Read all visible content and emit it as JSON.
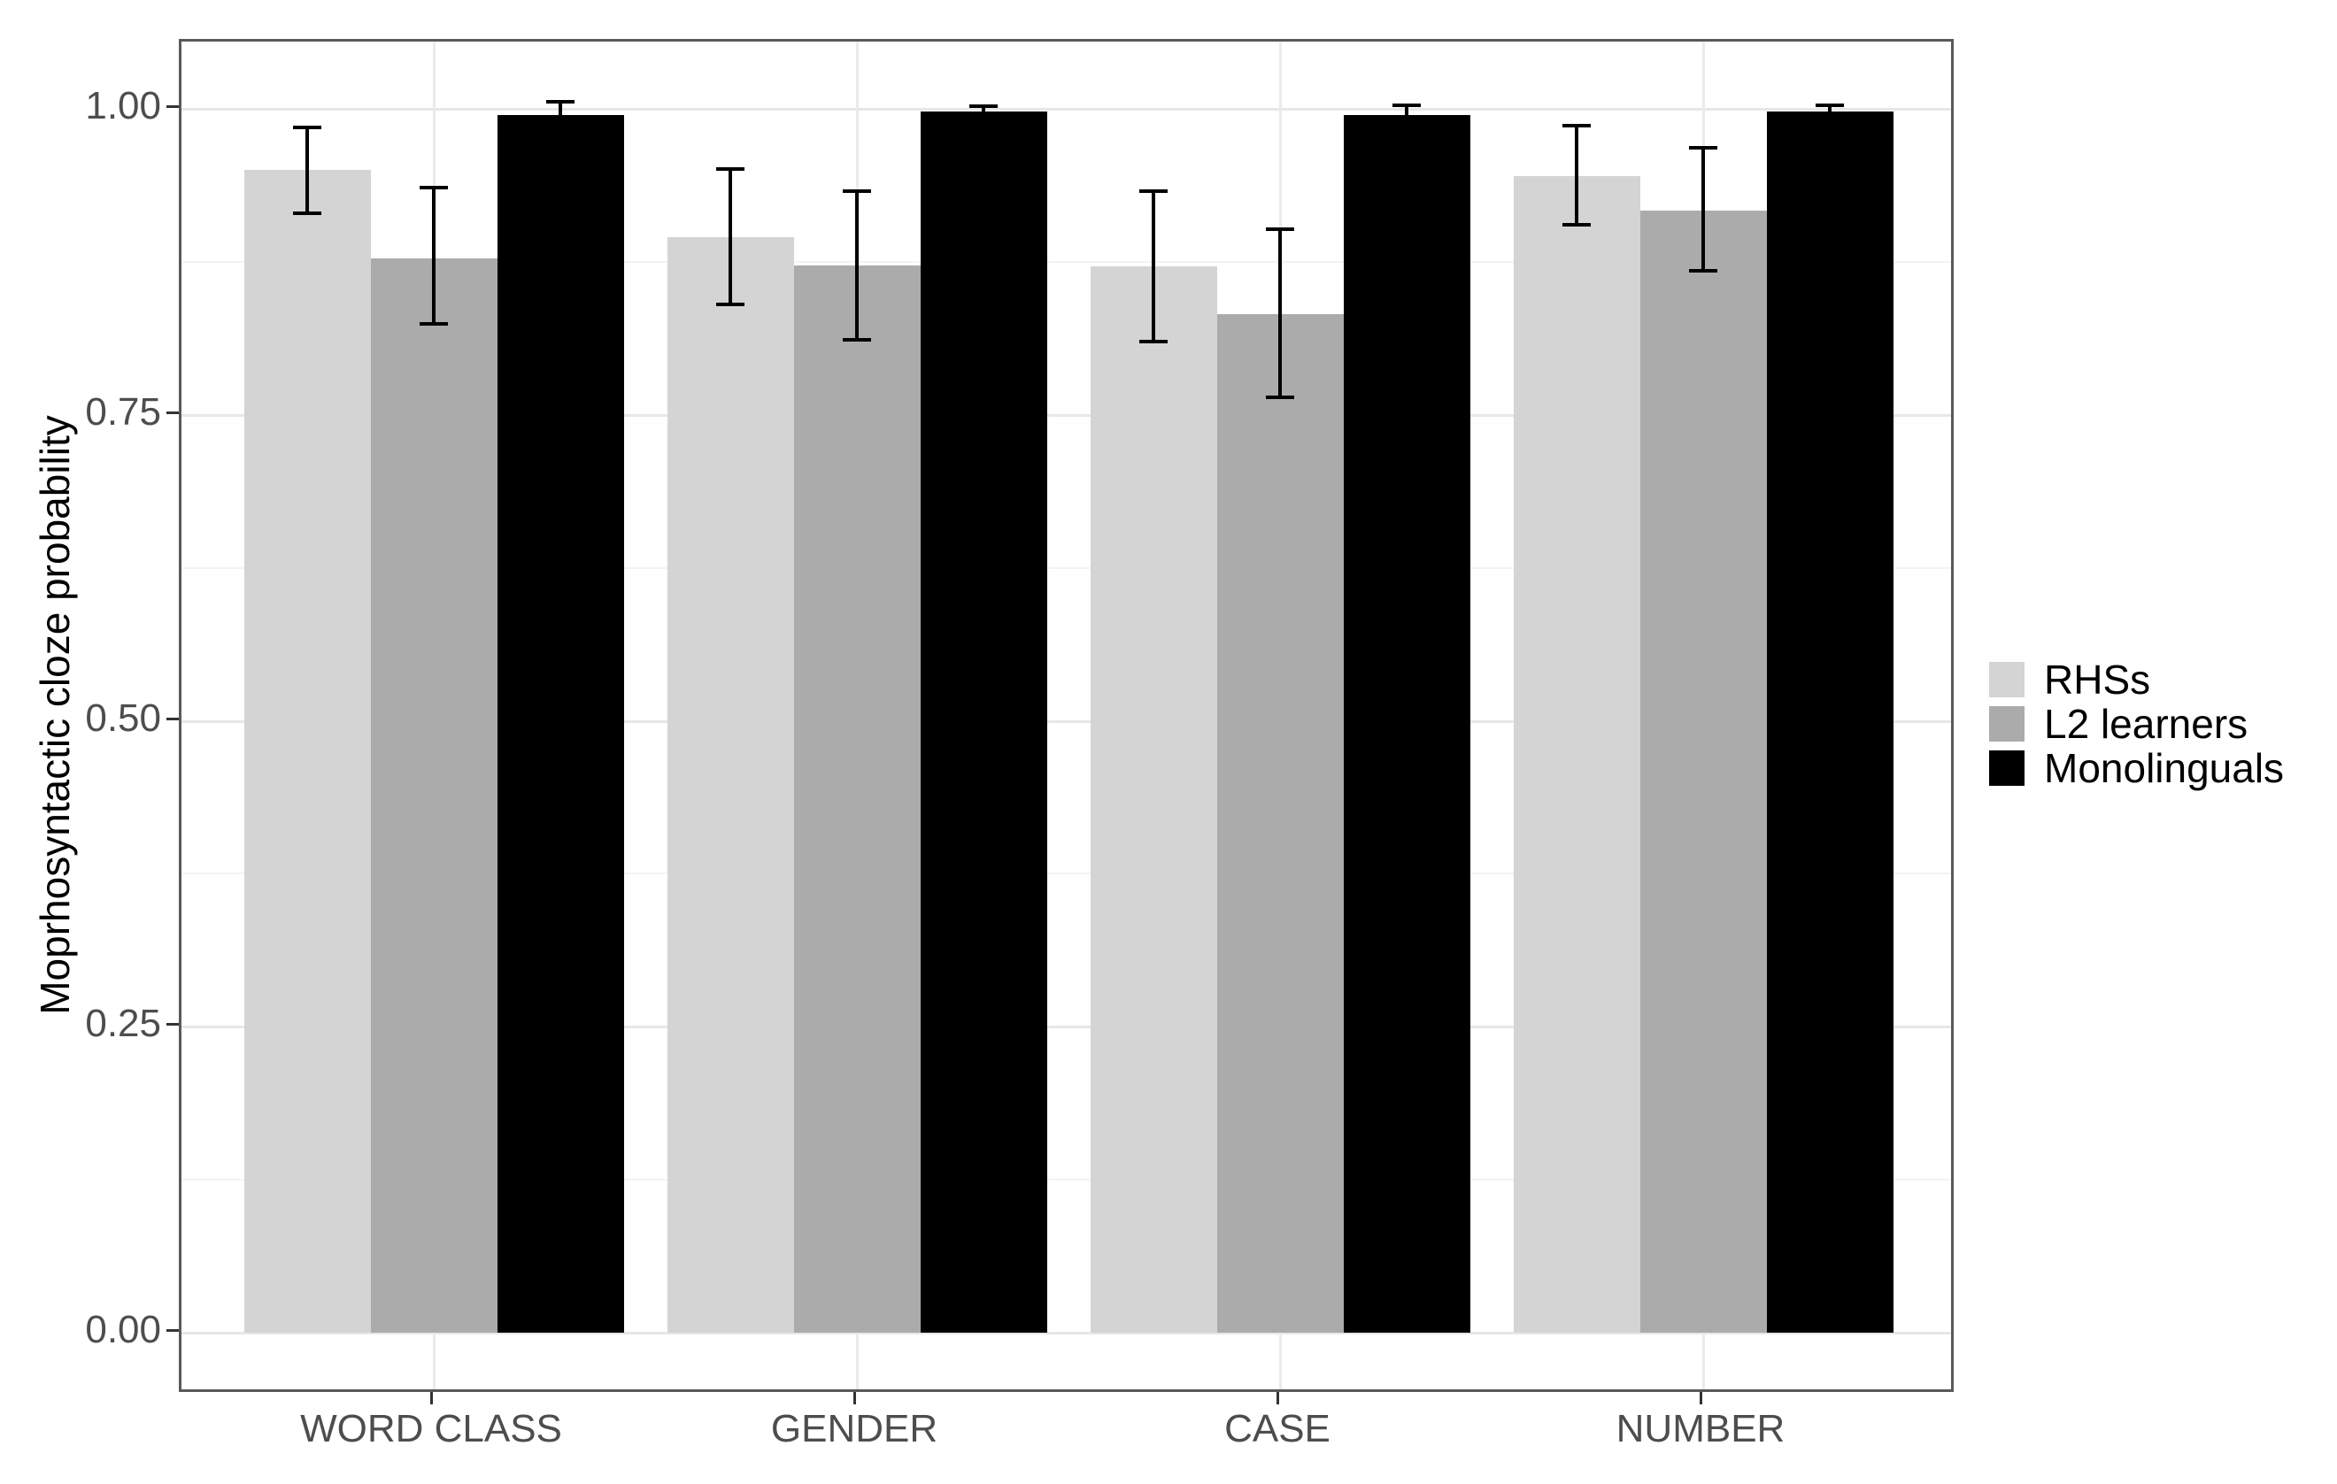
{
  "chart_data": {
    "type": "bar",
    "title": "",
    "xlabel": "",
    "ylabel": "Moprhosyntactic cloze probability",
    "categories": [
      "WORD CLASS",
      "GENDER",
      "CASE",
      "NUMBER"
    ],
    "y_tick_labels": [
      "0.00",
      "0.25",
      "0.50",
      "0.75",
      "1.00"
    ],
    "y_tick_values": [
      0,
      0.25,
      0.5,
      0.75,
      1.0
    ],
    "y_minor_tick_values": [
      0.125,
      0.375,
      0.625,
      0.875
    ],
    "ylim": [
      0,
      1.0
    ],
    "grid": "major and minor horizontal, major vertical at category centers",
    "legend_position": "right",
    "error_bars": true,
    "series": [
      {
        "name": "RHSs",
        "color": "#d4d4d4",
        "values": [
          0.95,
          0.895,
          0.871,
          0.945
        ],
        "ci_low": [
          0.915,
          0.84,
          0.81,
          0.905
        ],
        "ci_high": [
          0.985,
          0.951,
          0.933,
          0.986
        ]
      },
      {
        "name": "L2 learners",
        "color": "#ababab",
        "values": [
          0.878,
          0.872,
          0.832,
          0.917
        ],
        "ci_low": [
          0.824,
          0.811,
          0.764,
          0.868
        ],
        "ci_high": [
          0.936,
          0.933,
          0.902,
          0.968
        ]
      },
      {
        "name": "Monolinguals",
        "color": "#000000",
        "values": [
          0.995,
          0.998,
          0.995,
          0.998
        ],
        "ci_low": [
          0.984,
          0.993,
          0.987,
          0.994
        ],
        "ci_high": [
          1.006,
          1.002,
          1.003,
          1.003
        ]
      }
    ]
  }
}
